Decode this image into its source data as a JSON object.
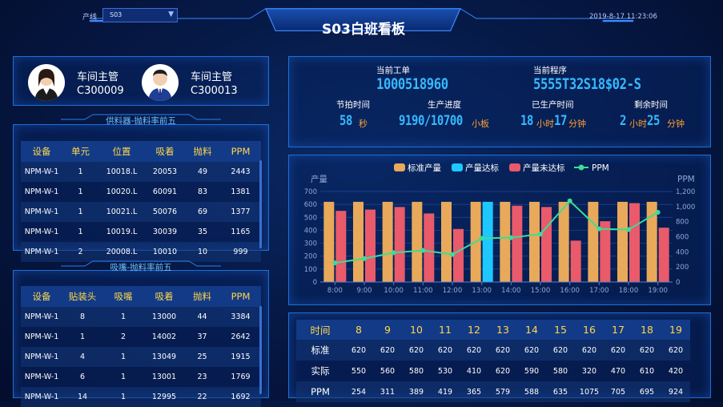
{
  "header": {
    "line_label": "产线",
    "line_value": "S03",
    "title": "S03白班看板",
    "datetime": "2019-8-17 11:23:06"
  },
  "supervisors": [
    {
      "role": "车间主管",
      "id": "C300009"
    },
    {
      "role": "车间主管",
      "id": "C300013"
    }
  ],
  "feeder": {
    "title": "供料器-抛料率前五",
    "headers": [
      "设备",
      "单元",
      "位置",
      "吸着",
      "抛料",
      "PPM"
    ],
    "rows": [
      [
        "NPM-W-1",
        "1",
        "10018.L",
        "20053",
        "49",
        "2443"
      ],
      [
        "NPM-W-1",
        "1",
        "10020.L",
        "60091",
        "83",
        "1381"
      ],
      [
        "NPM-W-1",
        "1",
        "10021.L",
        "50076",
        "69",
        "1377"
      ],
      [
        "NPM-W-1",
        "1",
        "10019.L",
        "30039",
        "35",
        "1165"
      ],
      [
        "NPM-W-1",
        "2",
        "20008.L",
        "10010",
        "10",
        "999"
      ]
    ]
  },
  "nozzle": {
    "title": "吸嘴-抛料率前五",
    "headers": [
      "设备",
      "贴装头",
      "吸嘴",
      "吸着",
      "抛料",
      "PPM"
    ],
    "rows": [
      [
        "NPM-W-1",
        "8",
        "1",
        "13000",
        "44",
        "3384"
      ],
      [
        "NPM-W-1",
        "1",
        "2",
        "14002",
        "37",
        "2642"
      ],
      [
        "NPM-W-1",
        "4",
        "1",
        "13049",
        "25",
        "1915"
      ],
      [
        "NPM-W-1",
        "6",
        "1",
        "13001",
        "23",
        "1769"
      ],
      [
        "NPM-W-1",
        "14",
        "1",
        "12995",
        "22",
        "1692"
      ]
    ]
  },
  "info": {
    "order_label": "当前工单",
    "order_value": "1000518960",
    "program_label": "当前程序",
    "program_value": "5555T32S18$02-S",
    "takt_label": "节拍时间",
    "takt_value": "58",
    "takt_unit": "秒",
    "progress_label": "生产进度",
    "progress_value": "9190/10700",
    "progress_unit": "小板",
    "produced_label": "已生产时间",
    "produced_hours": "18",
    "produced_hours_unit": "小时",
    "produced_minutes": "17",
    "produced_minutes_unit": "分钟",
    "remaining_label": "剩余时间",
    "remaining_hours": "2",
    "remaining_hours_unit": "小时",
    "remaining_minutes": "25",
    "remaining_minutes_unit": "分钟"
  },
  "chart_data": {
    "type": "bar",
    "ylabel": "产量",
    "y2label": "PPM",
    "ylim": [
      0,
      700
    ],
    "y2lim": [
      0,
      1200
    ],
    "yticks": [
      0,
      100,
      200,
      300,
      400,
      500,
      600,
      700
    ],
    "y2ticks": [
      "0",
      "200",
      "400",
      "600",
      "800",
      "1,000",
      "1,200"
    ],
    "categories": [
      "8:00",
      "9:00",
      "10:00",
      "11:00",
      "12:00",
      "13:00",
      "14:00",
      "15:00",
      "16:00",
      "17:00",
      "18:00",
      "19:00"
    ],
    "legend": [
      "标准产量",
      "产量达标",
      "产量未达标",
      "PPM"
    ],
    "legend_placement": "top",
    "series": [
      {
        "name": "标准产量",
        "values": [
          620,
          620,
          620,
          620,
          620,
          620,
          620,
          620,
          620,
          620,
          620,
          620
        ]
      },
      {
        "name": "实际",
        "values": [
          550,
          560,
          580,
          530,
          410,
          620,
          590,
          580,
          320,
          470,
          610,
          420
        ]
      },
      {
        "name": "PPM",
        "values": [
          254,
          311,
          389,
          419,
          365,
          579,
          588,
          635,
          1075,
          705,
          695,
          924
        ]
      }
    ],
    "colors": {
      "standard": "#e8a95a",
      "met": "#1ec8ff",
      "unmet": "#e95a6a",
      "ppm": "#3ddc97"
    }
  },
  "hours_table": {
    "headers": [
      "时间",
      "8",
      "9",
      "10",
      "11",
      "12",
      "13",
      "14",
      "15",
      "16",
      "17",
      "18",
      "19"
    ],
    "rows": [
      [
        "标准",
        "620",
        "620",
        "620",
        "620",
        "620",
        "620",
        "620",
        "620",
        "620",
        "620",
        "620",
        "620"
      ],
      [
        "实际",
        "550",
        "560",
        "580",
        "530",
        "410",
        "620",
        "590",
        "580",
        "320",
        "470",
        "610",
        "420"
      ],
      [
        "PPM",
        "254",
        "311",
        "389",
        "419",
        "365",
        "579",
        "588",
        "635",
        "1075",
        "705",
        "695",
        "924"
      ]
    ]
  }
}
